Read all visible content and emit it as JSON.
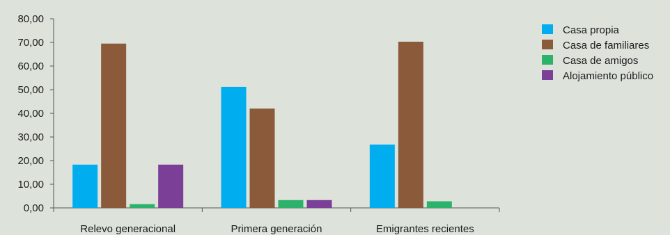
{
  "chart_data": {
    "type": "bar",
    "title": "",
    "xlabel": "",
    "ylabel": "",
    "ylim": [
      0,
      80
    ],
    "y_ticks": [
      "0,00",
      "10,00",
      "20,00",
      "30,00",
      "40,00",
      "50,00",
      "60,00",
      "70,00",
      "80,00"
    ],
    "grid": false,
    "legend_position": "right",
    "categories": [
      "Relevo generacional",
      "Primera generación",
      "Emigrantes recientes"
    ],
    "series": [
      {
        "name": "Casa propia",
        "color": "#00aeef",
        "values": [
          18.3,
          51.2,
          26.8
        ]
      },
      {
        "name": "Casa de familiares",
        "color": "#8b5a3a",
        "values": [
          69.5,
          42.0,
          70.3
        ]
      },
      {
        "name": "Casa de amigos",
        "color": "#2db26b",
        "values": [
          1.6,
          3.3,
          2.8
        ]
      },
      {
        "name": "Alojamiento público",
        "color": "#7b3f98",
        "values": [
          18.3,
          3.3,
          0
        ]
      }
    ]
  }
}
